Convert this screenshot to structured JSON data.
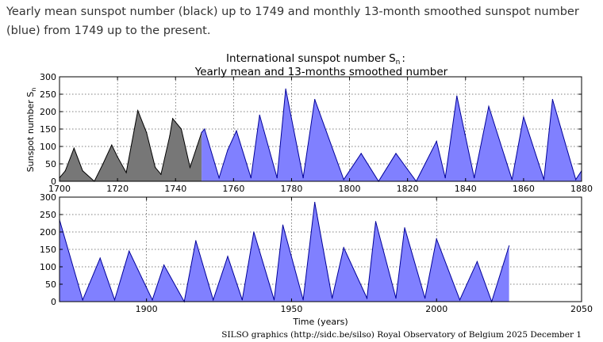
{
  "caption": "Yearly mean sunspot number (black) up to 1749 and monthly 13-month smoothed sunspot number (blue) from 1749 up to the present.",
  "colors": {
    "black_fill": "#777777",
    "black_line": "#000000",
    "blue_fill": "#8080ff",
    "blue_line": "#00009a"
  },
  "chart_data": [
    {
      "type": "area",
      "title_line1": "International sunspot number S",
      "title_sub": "n",
      "title_colon": ":",
      "title_line2": "Yearly mean and 13-months smoothed number",
      "ylabel": "Sunspot number S",
      "ylabel_sub": "n",
      "xlim": [
        1700,
        1880
      ],
      "ylim": [
        0,
        300
      ],
      "xticks": [
        "1700",
        "1720",
        "1740",
        "1760",
        "1780",
        "1800",
        "1820",
        "1840",
        "1860",
        "1880"
      ],
      "yticks": [
        "0",
        "50",
        "100",
        "150",
        "200",
        "250",
        "300"
      ],
      "grid": true,
      "series": [
        {
          "name": "Yearly mean (black)",
          "x": [
            1700,
            1702,
            1705,
            1708,
            1712,
            1715,
            1718,
            1720,
            1723,
            1727,
            1730,
            1733,
            1735,
            1738,
            1739,
            1742,
            1745,
            1749
          ],
          "values": [
            10,
            30,
            95,
            30,
            0,
            50,
            104,
            70,
            25,
            203,
            140,
            40,
            20,
            130,
            180,
            150,
            40,
            140
          ]
        },
        {
          "name": "13-month smoothed (blue)",
          "x": [
            1749,
            1750,
            1755,
            1758,
            1761,
            1766,
            1769,
            1775,
            1778,
            1784,
            1788,
            1798,
            1804,
            1810,
            1816,
            1823,
            1830,
            1833,
            1837,
            1843,
            1848,
            1856,
            1860,
            1867,
            1870,
            1878,
            1880
          ],
          "values": [
            140,
            150,
            10,
            90,
            145,
            10,
            190,
            10,
            265,
            10,
            235,
            5,
            80,
            0,
            80,
            0,
            115,
            10,
            245,
            10,
            215,
            5,
            185,
            5,
            235,
            5,
            30
          ]
        }
      ]
    },
    {
      "type": "area",
      "xlabel": "Time (years)",
      "xlim": [
        1870,
        2050
      ],
      "ylim": [
        0,
        300
      ],
      "xticks": [
        "1900",
        "1950",
        "2000",
        "2050"
      ],
      "yticks": [
        "0",
        "50",
        "100",
        "150",
        "200",
        "250",
        "300"
      ],
      "grid": true,
      "series": [
        {
          "name": "13-month smoothed (blue)",
          "x": [
            1870,
            1878,
            1884,
            1889,
            1894,
            1902,
            1906,
            1913,
            1917,
            1923,
            1928,
            1933,
            1937,
            1944,
            1947,
            1954,
            1958,
            1964,
            1968,
            1976,
            1979,
            1986,
            1989,
            1996,
            2000,
            2008,
            2014,
            2019,
            2025
          ],
          "values": [
            235,
            5,
            125,
            5,
            145,
            5,
            105,
            0,
            175,
            5,
            130,
            5,
            200,
            5,
            220,
            5,
            285,
            10,
            155,
            10,
            230,
            10,
            212,
            10,
            180,
            5,
            115,
            0,
            160
          ]
        }
      ]
    }
  ],
  "credit": "SILSO graphics (http://sidc.be/silso)  Royal Observatory of Belgium  2025 December 1"
}
